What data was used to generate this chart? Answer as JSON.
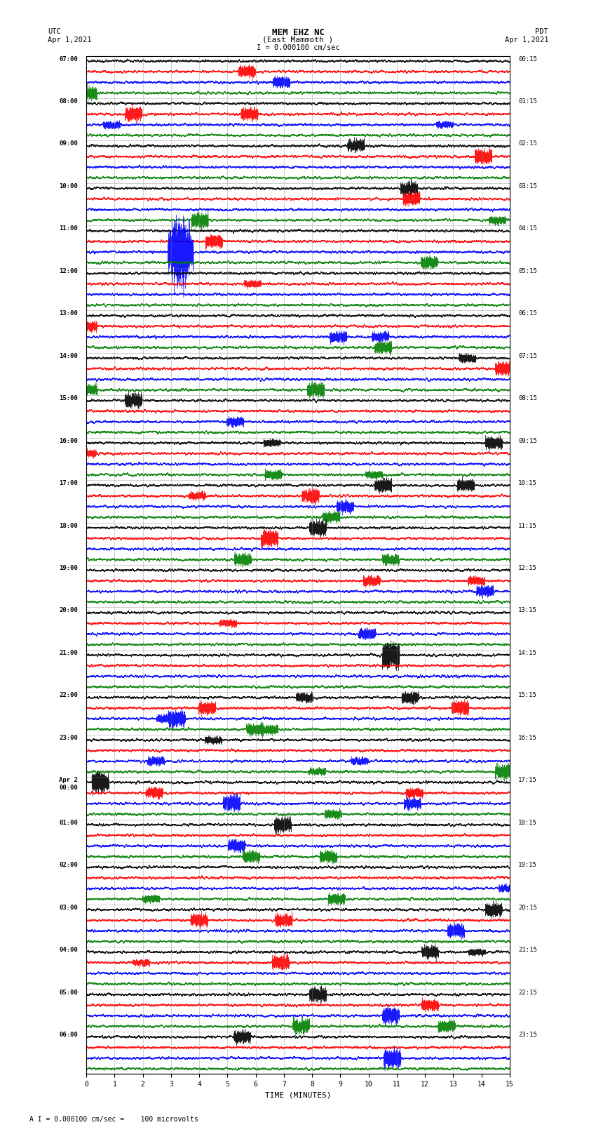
{
  "title_line1": "MEM EHZ NC",
  "title_line2": "(East Mammoth )",
  "scale_label": "I = 0.000100 cm/sec",
  "footer_label": "A I = 0.000100 cm/sec =    100 microvolts",
  "utc_label": "UTC\nApr 1,2021",
  "pdt_label": "PDT\nApr 1,2021",
  "xlabel": "TIME (MINUTES)",
  "left_times_utc": [
    "07:00",
    "08:00",
    "09:00",
    "10:00",
    "11:00",
    "12:00",
    "13:00",
    "14:00",
    "15:00",
    "16:00",
    "17:00",
    "18:00",
    "19:00",
    "20:00",
    "21:00",
    "22:00",
    "23:00",
    "Apr 2\n00:00",
    "01:00",
    "02:00",
    "03:00",
    "04:00",
    "05:00",
    "06:00"
  ],
  "right_times_pdt": [
    "00:15",
    "01:15",
    "02:15",
    "03:15",
    "04:15",
    "05:15",
    "06:15",
    "07:15",
    "08:15",
    "09:15",
    "10:15",
    "11:15",
    "12:15",
    "13:15",
    "14:15",
    "15:15",
    "16:15",
    "17:15",
    "18:15",
    "19:15",
    "20:15",
    "21:15",
    "22:15",
    "23:15"
  ],
  "colors": [
    "black",
    "red",
    "blue",
    "green"
  ],
  "bg_color": "white",
  "num_rows": 24,
  "traces_per_row": 4,
  "minutes": 15,
  "sample_rate": 100,
  "amplitude_scale": 0.35,
  "spike_row": 4,
  "spike_minute": 3.2,
  "spike2_row": 14,
  "spike2_minute": 10.8,
  "spike3_row": 23,
  "spike3_minute": 10.8,
  "xmin": 0,
  "xmax": 15,
  "xticks": [
    0,
    1,
    2,
    3,
    4,
    5,
    6,
    7,
    8,
    9,
    10,
    11,
    12,
    13,
    14,
    15
  ]
}
